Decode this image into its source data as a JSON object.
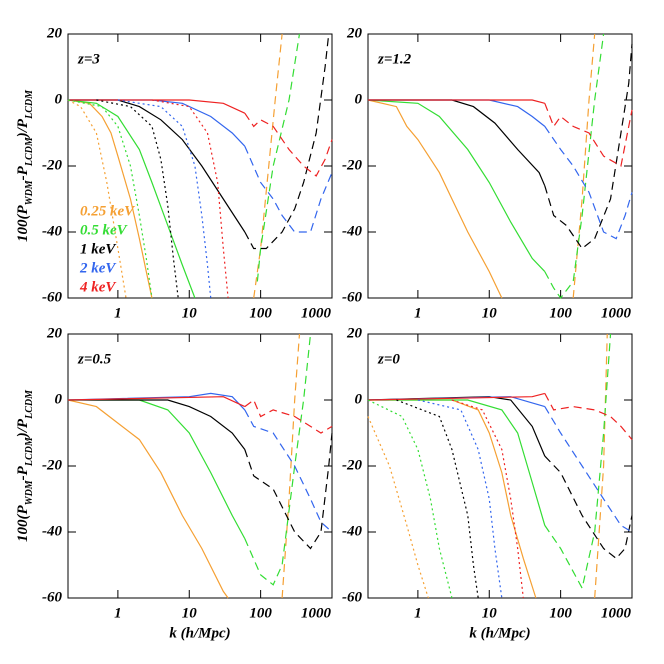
{
  "chart_data": [
    {
      "type": "line",
      "annotation": "z=3",
      "log_x": true,
      "xlim": [
        0.2,
        1000
      ],
      "ylim": [
        -60,
        20
      ],
      "xticks": [
        1,
        10,
        100,
        1000
      ],
      "yticks": [
        -60,
        -40,
        -20,
        0,
        20
      ],
      "ylabel": [
        "100(P",
        "WDM",
        "-P",
        "LCDM",
        ")/P",
        "LCDM"
      ],
      "series": [
        {
          "name": "0.25 keV",
          "color": "#f5a033",
          "line": "solid",
          "x": [
            0.2,
            0.4,
            0.6,
            0.8,
            1,
            1.5,
            2,
            2.5,
            3
          ],
          "values": [
            0,
            -1,
            -5,
            -10,
            -17,
            -30,
            -42,
            -52,
            -60
          ]
        },
        {
          "name": "0.5 keV",
          "color": "#33dd33",
          "line": "solid",
          "x": [
            0.2,
            0.5,
            1,
            2,
            3,
            5,
            8,
            12
          ],
          "values": [
            0,
            -1,
            -5,
            -15,
            -25,
            -38,
            -50,
            -60
          ]
        },
        {
          "name": "1 keV",
          "color": "#000000",
          "line": "solid",
          "x": [
            0.2,
            1,
            2,
            4,
            8,
            15,
            30,
            60
          ],
          "values": [
            0,
            0,
            -2,
            -6,
            -12,
            -20,
            -30,
            -40
          ]
        },
        {
          "name": "2 keV",
          "color": "#3366ee",
          "line": "solid",
          "x": [
            0.2,
            3,
            8,
            20,
            40,
            60
          ],
          "values": [
            0,
            0,
            -1,
            -5,
            -10,
            -14
          ]
        },
        {
          "name": "4 keV",
          "color": "#ee2222",
          "line": "solid",
          "x": [
            0.2,
            10,
            30,
            60
          ],
          "values": [
            0,
            0,
            -1,
            -4
          ]
        },
        {
          "color": "#f5a033",
          "line": "dotted",
          "x": [
            0.2,
            0.3,
            0.5,
            0.7,
            1,
            1.3
          ],
          "values": [
            0,
            -2,
            -10,
            -25,
            -45,
            -60
          ]
        },
        {
          "color": "#33dd33",
          "line": "dotted",
          "x": [
            0.2,
            0.6,
            1,
            1.5,
            2,
            2.5,
            3
          ],
          "values": [
            0,
            -2,
            -8,
            -20,
            -35,
            -48,
            -60
          ]
        },
        {
          "color": "#000000",
          "line": "dotted",
          "x": [
            0.5,
            1.5,
            3,
            4,
            5,
            6,
            7
          ],
          "values": [
            0,
            -2,
            -8,
            -18,
            -32,
            -48,
            -60
          ]
        },
        {
          "color": "#3366ee",
          "line": "dotted",
          "x": [
            1,
            4,
            8,
            12,
            15,
            18,
            20
          ],
          "values": [
            0,
            -2,
            -8,
            -20,
            -35,
            -50,
            -60
          ]
        },
        {
          "color": "#ee2222",
          "line": "dotted",
          "x": [
            3,
            10,
            18,
            25,
            30,
            35
          ],
          "values": [
            0,
            -2,
            -10,
            -25,
            -45,
            -60
          ]
        },
        {
          "color": "#f5a033",
          "line": "dashed",
          "x": [
            80,
            100,
            130,
            160,
            200
          ],
          "values": [
            -60,
            -45,
            -20,
            0,
            20
          ]
        },
        {
          "color": "#33dd33",
          "line": "dashed",
          "x": [
            90,
            100,
            150,
            250,
            350
          ],
          "values": [
            -55,
            -45,
            -20,
            0,
            20
          ]
        },
        {
          "color": "#000000",
          "line": "dashed",
          "x": [
            60,
            80,
            120,
            200,
            300,
            400,
            600,
            800,
            900
          ],
          "values": [
            -40,
            -45,
            -45,
            -40,
            -33,
            -25,
            -10,
            10,
            20
          ]
        },
        {
          "color": "#3366ee",
          "line": "dashed",
          "x": [
            60,
            100,
            150,
            200,
            300,
            500,
            700,
            1000
          ],
          "values": [
            -14,
            -25,
            -30,
            -35,
            -40,
            -40,
            -30,
            -22
          ]
        },
        {
          "color": "#ee2222",
          "line": "dashed",
          "x": [
            60,
            80,
            100,
            150,
            250,
            400,
            600,
            800,
            1000
          ],
          "values": [
            -4,
            -8,
            -6,
            -8,
            -15,
            -20,
            -23,
            -18,
            -12
          ]
        }
      ]
    },
    {
      "type": "line",
      "annotation": "z=1.2",
      "log_x": true,
      "xlim": [
        0.2,
        1000
      ],
      "ylim": [
        -60,
        20
      ],
      "xticks": [
        1,
        10,
        100,
        1000
      ],
      "yticks": [
        -60,
        -40,
        -20,
        0,
        20
      ],
      "series": [
        {
          "color": "#f5a033",
          "line": "solid",
          "x": [
            0.2,
            0.5,
            0.7,
            1,
            2,
            3,
            5,
            10,
            15
          ],
          "values": [
            0,
            -2,
            -8,
            -12,
            -22,
            -30,
            -40,
            -52,
            -60
          ]
        },
        {
          "color": "#33dd33",
          "line": "solid",
          "x": [
            0.2,
            1,
            2,
            5,
            10,
            20,
            40,
            60
          ],
          "values": [
            0,
            -1,
            -5,
            -15,
            -25,
            -37,
            -48,
            -52
          ]
        },
        {
          "color": "#000000",
          "line": "solid",
          "x": [
            0.2,
            3,
            6,
            12,
            25,
            50,
            60
          ],
          "values": [
            0,
            0,
            -2,
            -7,
            -15,
            -22,
            -26
          ]
        },
        {
          "color": "#3366ee",
          "line": "solid",
          "x": [
            0.2,
            10,
            25,
            40,
            60
          ],
          "values": [
            0,
            0,
            -2,
            -5,
            -8
          ]
        },
        {
          "color": "#ee2222",
          "line": "solid",
          "x": [
            0.2,
            40,
            60
          ],
          "values": [
            0,
            0,
            -1
          ]
        },
        {
          "color": "#f5a033",
          "line": "dashed",
          "x": [
            150,
            200,
            250,
            300
          ],
          "values": [
            -60,
            -30,
            0,
            20
          ]
        },
        {
          "color": "#33dd33",
          "line": "dashed",
          "x": [
            60,
            80,
            100,
            150,
            200,
            300,
            400
          ],
          "values": [
            -52,
            -57,
            -60,
            -55,
            -35,
            0,
            20
          ]
        },
        {
          "color": "#000000",
          "line": "dashed",
          "x": [
            60,
            80,
            120,
            200,
            300,
            500,
            700,
            900,
            1000
          ],
          "values": [
            -26,
            -35,
            -38,
            -45,
            -42,
            -30,
            -10,
            5,
            17
          ]
        },
        {
          "color": "#3366ee",
          "line": "dashed",
          "x": [
            60,
            100,
            150,
            250,
            400,
            600,
            800,
            1000
          ],
          "values": [
            -8,
            -15,
            -20,
            -28,
            -40,
            -42,
            -35,
            -28
          ]
        },
        {
          "color": "#ee2222",
          "line": "dashed",
          "x": [
            60,
            80,
            100,
            150,
            250,
            400,
            700,
            1000
          ],
          "values": [
            -1,
            -8,
            -5,
            -8,
            -10,
            -17,
            -20,
            -3
          ]
        }
      ]
    },
    {
      "type": "line",
      "annotation": "z=0.5",
      "log_x": true,
      "xlim": [
        0.2,
        1000
      ],
      "ylim": [
        -60,
        20
      ],
      "xticks": [
        1,
        10,
        100,
        1000
      ],
      "yticks": [
        -60,
        -40,
        -20,
        0,
        20
      ],
      "ylabel": [
        "100(P",
        "WDM",
        "-P",
        "LCDM",
        ")/P",
        "LCDM"
      ],
      "xlabel": "k (h/Mpc)",
      "series": [
        {
          "color": "#f5a033",
          "line": "solid",
          "x": [
            0.2,
            0.5,
            1,
            2,
            4,
            8,
            15,
            30,
            35
          ],
          "values": [
            0,
            -2,
            -7,
            -12,
            -22,
            -35,
            -45,
            -58,
            -60
          ]
        },
        {
          "color": "#33dd33",
          "line": "solid",
          "x": [
            0.2,
            2,
            5,
            10,
            20,
            40,
            60
          ],
          "values": [
            0,
            0,
            -3,
            -10,
            -22,
            -35,
            -42
          ]
        },
        {
          "color": "#000000",
          "line": "solid",
          "x": [
            0.2,
            5,
            10,
            20,
            40,
            60
          ],
          "values": [
            0,
            0,
            -2,
            -5,
            -10,
            -15
          ]
        },
        {
          "color": "#3366ee",
          "line": "solid",
          "x": [
            0.2,
            10,
            20,
            40,
            60
          ],
          "values": [
            0,
            1,
            2,
            1,
            -3
          ]
        },
        {
          "color": "#ee2222",
          "line": "solid",
          "x": [
            0.2,
            30,
            60
          ],
          "values": [
            0,
            1,
            -2
          ]
        },
        {
          "color": "#f5a033",
          "line": "dashed",
          "x": [
            200,
            250,
            300,
            350
          ],
          "values": [
            -60,
            -30,
            0,
            20
          ]
        },
        {
          "color": "#33dd33",
          "line": "dashed",
          "x": [
            60,
            100,
            150,
            200,
            300,
            400,
            500
          ],
          "values": [
            -42,
            -53,
            -56,
            -50,
            -20,
            0,
            20
          ]
        },
        {
          "color": "#000000",
          "line": "dashed",
          "x": [
            60,
            80,
            150,
            300,
            500,
            700,
            900,
            1000
          ],
          "values": [
            -15,
            -23,
            -27,
            -40,
            -45,
            -40,
            -20,
            -10
          ]
        },
        {
          "color": "#3366ee",
          "line": "dashed",
          "x": [
            60,
            80,
            150,
            300,
            500,
            700,
            1000
          ],
          "values": [
            -3,
            -8,
            -10,
            -20,
            -30,
            -37,
            -40
          ]
        },
        {
          "color": "#ee2222",
          "line": "dashed",
          "x": [
            60,
            80,
            100,
            150,
            300,
            500,
            700,
            1000
          ],
          "values": [
            -2,
            0,
            -5,
            -3,
            -5,
            -8,
            -10,
            -8
          ]
        }
      ]
    },
    {
      "type": "line",
      "annotation": "z=0",
      "log_x": true,
      "xlim": [
        0.2,
        1000
      ],
      "ylim": [
        -60,
        20
      ],
      "xticks": [
        1,
        10,
        100,
        1000
      ],
      "yticks": [
        -60,
        -40,
        -20,
        0,
        20
      ],
      "xlabel": "k (h/Mpc)",
      "series": [
        {
          "color": "#f5a033",
          "line": "solid",
          "x": [
            0.2,
            3,
            7,
            10,
            15,
            20,
            30,
            45
          ],
          "values": [
            0,
            0,
            -3,
            -10,
            -22,
            -35,
            -48,
            -60
          ]
        },
        {
          "color": "#33dd33",
          "line": "solid",
          "x": [
            0.2,
            5,
            15,
            25,
            40,
            60
          ],
          "values": [
            0,
            0,
            -3,
            -10,
            -25,
            -38
          ]
        },
        {
          "color": "#000000",
          "line": "solid",
          "x": [
            0.2,
            10,
            20,
            40,
            60
          ],
          "values": [
            0,
            1,
            0,
            -8,
            -17
          ]
        },
        {
          "color": "#3366ee",
          "line": "solid",
          "x": [
            0.2,
            20,
            60
          ],
          "values": [
            0,
            1,
            -2
          ]
        },
        {
          "color": "#ee2222",
          "line": "solid",
          "x": [
            0.2,
            40,
            60
          ],
          "values": [
            0,
            1,
            2
          ]
        },
        {
          "color": "#f5a033",
          "line": "dotted",
          "x": [
            0.2,
            0.4,
            0.7,
            1,
            1.4
          ],
          "values": [
            -5,
            -20,
            -38,
            -50,
            -60
          ]
        },
        {
          "color": "#33dd33",
          "line": "dotted",
          "x": [
            0.2,
            0.6,
            1,
            1.5,
            2,
            3
          ],
          "values": [
            0,
            -5,
            -15,
            -30,
            -45,
            -60
          ]
        },
        {
          "color": "#000000",
          "line": "dotted",
          "x": [
            0.5,
            2,
            3,
            5,
            6,
            7
          ],
          "values": [
            0,
            -5,
            -15,
            -35,
            -50,
            -60
          ]
        },
        {
          "color": "#3366ee",
          "line": "dotted",
          "x": [
            1,
            4,
            7,
            10,
            12,
            15
          ],
          "values": [
            0,
            -3,
            -15,
            -30,
            -45,
            -60
          ]
        },
        {
          "color": "#ee2222",
          "line": "dotted",
          "x": [
            3,
            8,
            15,
            20,
            25,
            30
          ],
          "values": [
            0,
            -3,
            -15,
            -30,
            -45,
            -60
          ]
        },
        {
          "color": "#f5a033",
          "line": "dashed",
          "x": [
            300,
            400,
            450
          ],
          "values": [
            -60,
            -20,
            20
          ]
        },
        {
          "color": "#33dd33",
          "line": "dashed",
          "x": [
            60,
            100,
            200,
            300,
            400,
            500
          ],
          "values": [
            -38,
            -45,
            -57,
            -40,
            -10,
            20
          ]
        },
        {
          "color": "#000000",
          "line": "dashed",
          "x": [
            60,
            100,
            200,
            400,
            600,
            800,
            1000
          ],
          "values": [
            -17,
            -22,
            -35,
            -45,
            -48,
            -45,
            -35
          ]
        },
        {
          "color": "#3366ee",
          "line": "dashed",
          "x": [
            60,
            100,
            200,
            400,
            700,
            1000
          ],
          "values": [
            -2,
            -10,
            -20,
            -30,
            -38,
            -40
          ]
        },
        {
          "color": "#ee2222",
          "line": "dashed",
          "x": [
            60,
            80,
            150,
            300,
            500,
            700,
            1000
          ],
          "values": [
            2,
            -3,
            -2,
            -3,
            -5,
            -8,
            -12
          ]
        }
      ]
    }
  ]
}
